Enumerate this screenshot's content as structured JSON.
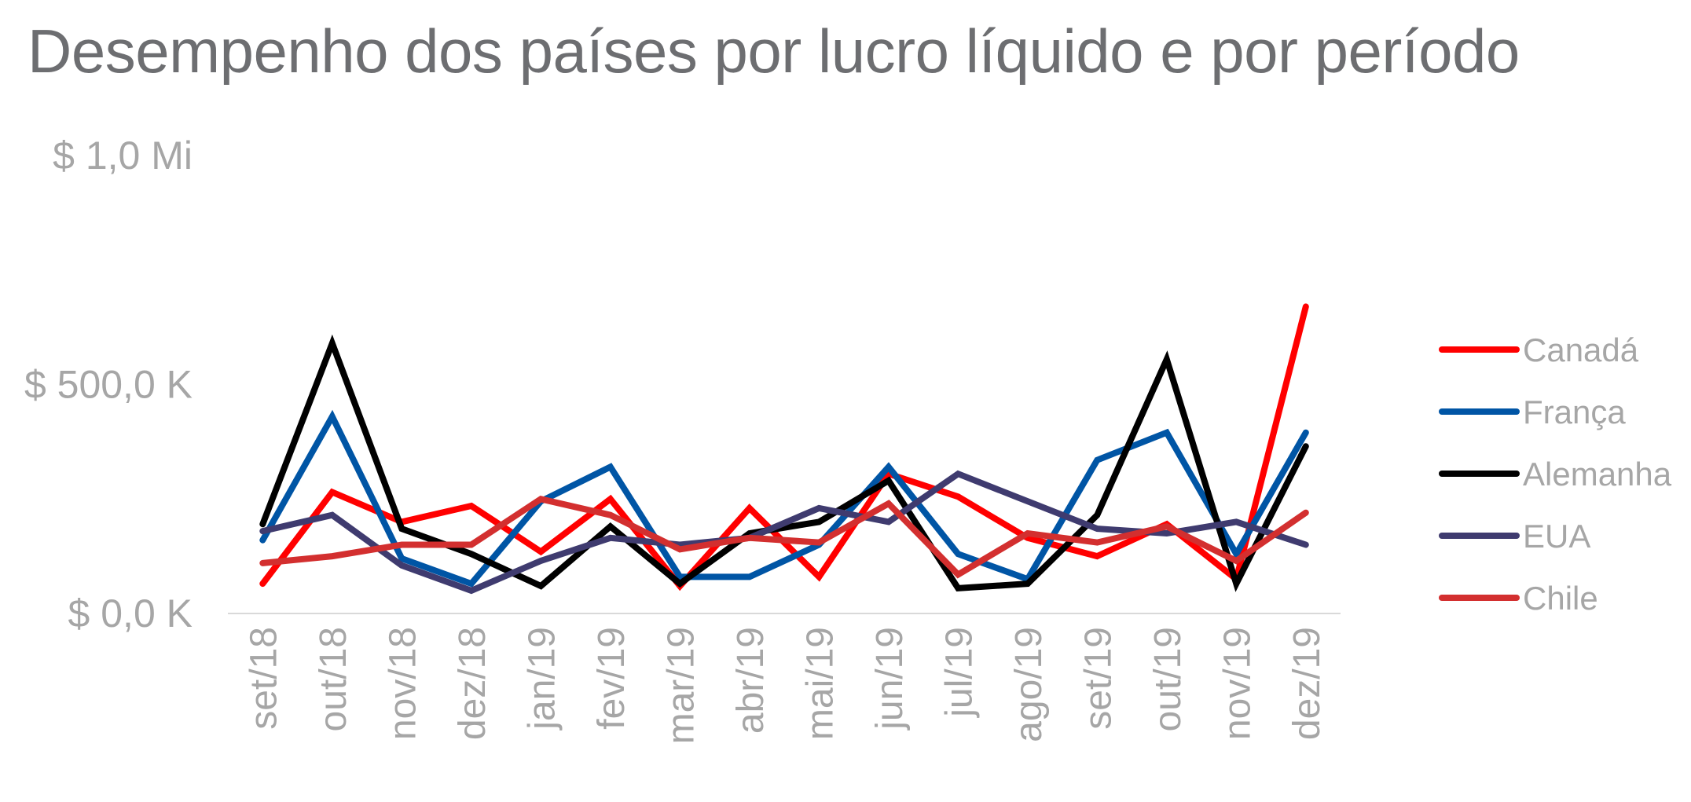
{
  "chart_data": {
    "type": "line",
    "title": "Desempenho dos países por lucro líquido e por período",
    "xlabel": "",
    "ylabel": "",
    "categories": [
      "set/18",
      "out/18",
      "nov/18",
      "dez/18",
      "jan/19",
      "fev/19",
      "mar/19",
      "abr/19",
      "mai/19",
      "jun/19",
      "jul/19",
      "ago/19",
      "set/19",
      "out/19",
      "nov/19",
      "dez/19"
    ],
    "ylim": [
      0,
      1000000
    ],
    "yticks": [
      {
        "value": 0,
        "label": "$ 0,0 K"
      },
      {
        "value": 500000,
        "label": "$ 500,0 K"
      },
      {
        "value": 1000000,
        "label": "$ 1,0 Mi"
      }
    ],
    "grid": false,
    "legend_position": "right",
    "series": [
      {
        "name": "Canadá",
        "color": "#ff0000",
        "values": [
          65000,
          265000,
          200000,
          235000,
          135000,
          250000,
          60000,
          230000,
          80000,
          305000,
          255000,
          165000,
          125000,
          195000,
          75000,
          670000
        ]
      },
      {
        "name": "França",
        "color": "#0055a5",
        "values": [
          160000,
          430000,
          120000,
          65000,
          245000,
          320000,
          80000,
          80000,
          150000,
          320000,
          130000,
          75000,
          335000,
          395000,
          130000,
          395000
        ]
      },
      {
        "name": "Alemanha",
        "color": "#000000",
        "values": [
          195000,
          590000,
          185000,
          130000,
          60000,
          190000,
          65000,
          175000,
          200000,
          290000,
          55000,
          65000,
          215000,
          555000,
          65000,
          365000
        ]
      },
      {
        "name": "EUA",
        "color": "#3f3b6f",
        "values": [
          180000,
          215000,
          105000,
          50000,
          115000,
          165000,
          150000,
          165000,
          230000,
          200000,
          305000,
          245000,
          185000,
          175000,
          200000,
          150000
        ]
      },
      {
        "name": "Chile",
        "color": "#d32f2f",
        "values": [
          110000,
          125000,
          150000,
          150000,
          250000,
          215000,
          140000,
          165000,
          155000,
          240000,
          85000,
          175000,
          155000,
          190000,
          115000,
          220000
        ]
      }
    ]
  }
}
